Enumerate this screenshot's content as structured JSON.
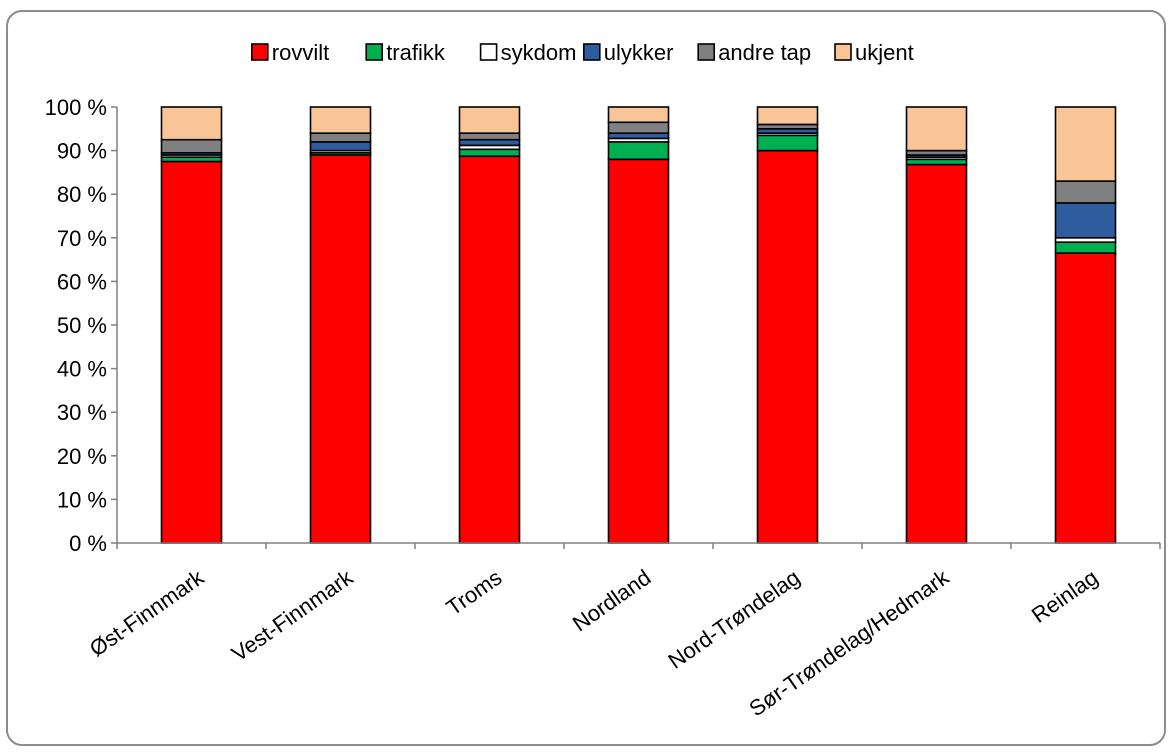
{
  "chart_data": {
    "type": "bar",
    "stacked": true,
    "percent": true,
    "categories": [
      "Øst-Finnmark",
      "Vest-Finnmark",
      "Troms",
      "Nordland",
      "Nord-Trøndelag",
      "Sør-Trøndelag/Hedmark",
      "Reinlag"
    ],
    "series": [
      {
        "name": "rovvilt",
        "color": "#FF0000",
        "values": [
          87.5,
          89.0,
          88.7,
          88.0,
          90.0,
          86.8,
          66.5
        ]
      },
      {
        "name": "trafikk",
        "color": "#00B050",
        "values": [
          1.0,
          0.5,
          1.6,
          4.0,
          3.5,
          1.2,
          2.5
        ]
      },
      {
        "name": "sykdom",
        "color": "#FFFFFF",
        "values": [
          0.5,
          0.5,
          0.9,
          0.8,
          0.5,
          0.5,
          1.0
        ]
      },
      {
        "name": "ulykker",
        "color": "#2E5C9E",
        "values": [
          0.5,
          2.0,
          1.3,
          1.2,
          1.0,
          0.5,
          8.0
        ]
      },
      {
        "name": "andre tap",
        "color": "#808080",
        "values": [
          3.0,
          2.0,
          1.5,
          2.5,
          1.0,
          1.0,
          5.0
        ]
      },
      {
        "name": "ukjent",
        "color": "#F9C597",
        "values": [
          7.5,
          6.0,
          6.0,
          3.5,
          4.0,
          10.0,
          17.0
        ]
      }
    ],
    "y_ticks": [
      "0 %",
      "10 %",
      "20 %",
      "30 %",
      "40 %",
      "50 %",
      "60 %",
      "70 %",
      "80 %",
      "90 %",
      "100 %"
    ],
    "ylim": [
      0,
      100
    ],
    "grid": false,
    "legend_position": "top"
  }
}
